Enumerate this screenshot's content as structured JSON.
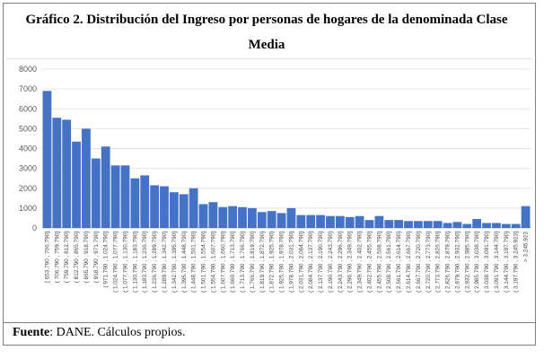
{
  "figure": {
    "title": "Gráfico 2. Distribución del Ingreso por personas de hogares de la denominada Clase Media",
    "source_label": "Fuente",
    "source_text": ": DANE. Cálculos propios."
  },
  "chart_data": {
    "type": "bar",
    "title": "",
    "xlabel": "",
    "ylabel": "",
    "ylim": [
      0,
      8000
    ],
    "yticks": [
      0,
      1000,
      2000,
      3000,
      4000,
      5000,
      6000,
      7000,
      8000
    ],
    "bar_color": "#4472c4",
    "grid": true,
    "legend": "none",
    "categories": [
      "[ 653.790 , 706.790]",
      "( 706.790 , 759.790]",
      "( 759.790 , 812.790]",
      "( 812.790 , 865.790]",
      "( 865.790 , 918.790]",
      "( 918.790 , 971.790]",
      "( 971.790 , 1.024.790]",
      "( 1.024.790 , 1.077.790]",
      "( 1.077.790 , 1.130.790]",
      "( 1.130.790 , 1.183.790]",
      "( 1.183.790 , 1.236.790]",
      "( 1.236.790 , 1.289.790]",
      "( 1.289.790 , 1.342.790]",
      "( 1.342.790 , 1.395.790]",
      "( 1.395.790 , 1.448.790]",
      "( 1.448.790 , 1.501.790]",
      "( 1.501.790 , 1.554.790]",
      "( 1.554.790 , 1.607.790]",
      "( 1.607.790 , 1.660.790]",
      "( 1.660.790 , 1.713.790]",
      "( 1.713.790 , 1.766.790]",
      "( 1.766.790 , 1.819.790]",
      "( 1.819.790 , 1.872.790]",
      "( 1.872.790 , 1.925.790]",
      "( 1.925.790 , 1.978.790]",
      "( 1.978.790 , 2.031.790]",
      "( 2.031.790 , 2.084.790]",
      "( 2.084.790 , 2.137.790]",
      "( 2.137.790 , 2.190.790]",
      "( 2.190.790 , 2.243.790]",
      "( 2.243.790 , 2.296.790]",
      "( 2.296.790 , 2.349.790]",
      "( 2.349.790 , 2.402.790]",
      "( 2.402.790 , 2.455.790]",
      "( 2.455.790 , 2.508.790]",
      "( 2.508.790 , 2.561.790]",
      "( 2.561.790 , 2.614.790]",
      "( 2.614.790 , 2.667.790]",
      "( 2.667.790 , 2.720.790]",
      "( 2.720.790 , 2.773.790]",
      "( 2.773.790 , 2.826.790]",
      "( 2.826.790 , 2.879.790]",
      "( 2.879.790 , 2.932.790]",
      "( 2.932.790 , 2.985.790]",
      "( 2.985.790 , 3.038.790]",
      "( 3.038.790 , 3.091.790]",
      "( 3.091.790 , 3.144.790]",
      "( 3.144.790 , 3.197.790]",
      "( 3.197.790 , 3.245.923]",
      "> 3.245.923"
    ],
    "values": [
      6900,
      5550,
      5450,
      4350,
      5000,
      3500,
      4100,
      3150,
      3150,
      2500,
      2650,
      2150,
      2100,
      1800,
      1700,
      2000,
      1200,
      1300,
      1050,
      1100,
      1050,
      1000,
      800,
      850,
      750,
      1000,
      650,
      650,
      650,
      600,
      600,
      550,
      600,
      400,
      600,
      400,
      400,
      350,
      350,
      350,
      350,
      250,
      300,
      200,
      450,
      250,
      250,
      200,
      200,
      1100
    ]
  }
}
